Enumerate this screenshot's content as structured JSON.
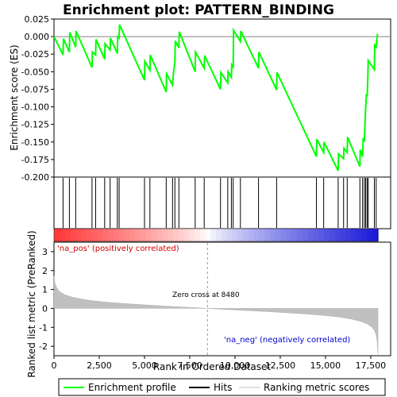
{
  "chart_data": {
    "type": "line",
    "title": "Enrichment plot: PATTERN_BINDING",
    "colors": {
      "enrichment": "#00ff00",
      "hits": "#000000",
      "ranking": "#c0c0c0",
      "zero_line": "#808080"
    },
    "enrichment_panel": {
      "ylabel": "Enrichment score (ES)",
      "ylim": [
        -0.2,
        0.025
      ],
      "yticks": [
        "0.025",
        "0.000",
        "-0.025",
        "-0.050",
        "-0.075",
        "-0.100",
        "-0.125",
        "-0.150",
        "-0.175",
        "-0.200"
      ],
      "series_name": "Enrichment profile",
      "points": [
        [
          0,
          0.0
        ],
        [
          500,
          -0.026
        ],
        [
          520,
          -0.003
        ],
        [
          850,
          -0.022
        ],
        [
          870,
          0.006
        ],
        [
          1200,
          -0.015
        ],
        [
          1220,
          0.008
        ],
        [
          2100,
          -0.044
        ],
        [
          2120,
          -0.022
        ],
        [
          2300,
          -0.026
        ],
        [
          2320,
          -0.004
        ],
        [
          2800,
          -0.032
        ],
        [
          2820,
          -0.01
        ],
        [
          3100,
          -0.019
        ],
        [
          3120,
          -0.002
        ],
        [
          3500,
          -0.024
        ],
        [
          3520,
          0.0
        ],
        [
          3600,
          -0.002
        ],
        [
          3620,
          0.017
        ],
        [
          5000,
          -0.062
        ],
        [
          5020,
          -0.035
        ],
        [
          5300,
          -0.048
        ],
        [
          5320,
          -0.026
        ],
        [
          6200,
          -0.079
        ],
        [
          6220,
          -0.053
        ],
        [
          6550,
          -0.069
        ],
        [
          6600,
          -0.052
        ],
        [
          6680,
          -0.036
        ],
        [
          6700,
          -0.006
        ],
        [
          6900,
          -0.016
        ],
        [
          6920,
          0.007
        ],
        [
          7800,
          -0.05
        ],
        [
          7820,
          -0.022
        ],
        [
          8300,
          -0.045
        ],
        [
          8320,
          -0.027
        ],
        [
          9200,
          -0.075
        ],
        [
          9220,
          -0.051
        ],
        [
          9600,
          -0.066
        ],
        [
          9620,
          -0.05
        ],
        [
          9800,
          -0.058
        ],
        [
          9820,
          -0.04
        ],
        [
          9900,
          -0.043
        ],
        [
          9920,
          0.009
        ],
        [
          10300,
          -0.007
        ],
        [
          10320,
          0.008
        ],
        [
          11300,
          -0.045
        ],
        [
          11320,
          -0.022
        ],
        [
          12300,
          -0.076
        ],
        [
          12320,
          -0.051
        ],
        [
          14500,
          -0.171
        ],
        [
          14520,
          -0.146
        ],
        [
          14900,
          -0.165
        ],
        [
          14920,
          -0.15
        ],
        [
          15700,
          -0.191
        ],
        [
          15720,
          -0.167
        ],
        [
          16000,
          -0.174
        ],
        [
          16020,
          -0.159
        ],
        [
          16200,
          -0.165
        ],
        [
          16220,
          -0.143
        ],
        [
          16900,
          -0.185
        ],
        [
          16920,
          -0.161
        ],
        [
          17050,
          -0.171
        ],
        [
          17080,
          -0.146
        ],
        [
          17150,
          -0.148
        ],
        [
          17180,
          -0.125
        ],
        [
          17220,
          -0.102
        ],
        [
          17260,
          -0.082
        ],
        [
          17300,
          -0.085
        ],
        [
          17340,
          -0.058
        ],
        [
          17360,
          -0.034
        ],
        [
          17700,
          -0.047
        ],
        [
          17720,
          -0.012
        ],
        [
          17800,
          -0.015
        ],
        [
          17850,
          -0.001
        ],
        [
          17880,
          0.004
        ]
      ]
    },
    "hits_panel": {
      "series_name": "Hits",
      "positions": [
        500,
        850,
        1200,
        2100,
        2300,
        2800,
        3100,
        3500,
        3600,
        5000,
        5300,
        6200,
        6550,
        6680,
        6900,
        7800,
        8300,
        9200,
        9600,
        9800,
        9900,
        10300,
        11300,
        12300,
        14500,
        14900,
        15700,
        16000,
        16200,
        16900,
        17050,
        17150,
        17220,
        17300,
        17360,
        17700,
        17800
      ]
    },
    "ranking_panel": {
      "ylabel": "Ranked list metric (PreRanked)",
      "xlabel": "Rank in Ordered Dataset",
      "ylim": [
        -2.5,
        3.5
      ],
      "yticks": [
        "3",
        "2",
        "1",
        "0",
        "-1",
        "-2"
      ],
      "xticks": [
        "0",
        "2,500",
        "5,000",
        "7,500",
        "10,000",
        "12,500",
        "15,000",
        "17,500"
      ],
      "xlim": [
        0,
        18600
      ],
      "total_rank": 17900,
      "zero_cross": 8480,
      "zero_cross_label": "Zero cross at 8480",
      "pos_label": "'na_pos' (positively correlated)",
      "neg_label": "'na_neg' (negatively correlated)",
      "metric_curve": [
        [
          0,
          1.7
        ],
        [
          50,
          1.35
        ],
        [
          150,
          1.1
        ],
        [
          300,
          0.9
        ],
        [
          600,
          0.72
        ],
        [
          1000,
          0.6
        ],
        [
          1500,
          0.5
        ],
        [
          2000,
          0.42
        ],
        [
          3000,
          0.32
        ],
        [
          4000,
          0.25
        ],
        [
          5000,
          0.19
        ],
        [
          6000,
          0.13
        ],
        [
          7000,
          0.08
        ],
        [
          8000,
          0.03
        ],
        [
          8480,
          0.0
        ],
        [
          9000,
          -0.03
        ],
        [
          10000,
          -0.08
        ],
        [
          11000,
          -0.13
        ],
        [
          12000,
          -0.18
        ],
        [
          13000,
          -0.24
        ],
        [
          14000,
          -0.3
        ],
        [
          15000,
          -0.38
        ],
        [
          15800,
          -0.46
        ],
        [
          16500,
          -0.58
        ],
        [
          17000,
          -0.7
        ],
        [
          17300,
          -0.82
        ],
        [
          17550,
          -0.98
        ],
        [
          17700,
          -1.15
        ],
        [
          17800,
          -1.4
        ],
        [
          17860,
          -1.8
        ],
        [
          17900,
          -2.4
        ]
      ]
    },
    "legend": {
      "items": [
        "Enrichment profile",
        "Hits",
        "Ranking metric scores"
      ]
    }
  }
}
